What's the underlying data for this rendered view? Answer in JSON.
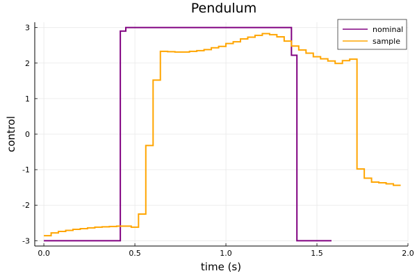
{
  "chart_data": {
    "type": "line",
    "style": "steps",
    "title": "Pendulum",
    "xlabel": "time (s)",
    "ylabel": "control",
    "xlim": [
      -0.05,
      2.0
    ],
    "ylim": [
      -3.15,
      3.15
    ],
    "xticks": [
      0.0,
      0.5,
      1.0,
      1.5,
      2.0
    ],
    "xtick_labels": [
      "0.0",
      "0.5",
      "1.0",
      "1.5",
      "2.0"
    ],
    "yticks": [
      -3,
      -2,
      -1,
      0,
      1,
      2,
      3
    ],
    "ytick_labels": [
      "-3",
      "-2",
      "-1",
      "0",
      "1",
      "2",
      "3"
    ],
    "grid": true,
    "legend_position": "top-right",
    "series": [
      {
        "name": "nominal",
        "color": "#800080",
        "x": [
          0.0,
          0.42,
          0.45,
          1.36,
          1.39,
          1.58
        ],
        "y": [
          -3.0,
          2.9,
          3.0,
          2.22,
          -3.0,
          -3.0
        ]
      },
      {
        "name": "sample",
        "color": "#FFA500",
        "x": [
          0.0,
          0.04,
          0.08,
          0.12,
          0.16,
          0.2,
          0.24,
          0.28,
          0.32,
          0.36,
          0.4,
          0.44,
          0.48,
          0.52,
          0.56,
          0.6,
          0.64,
          0.68,
          0.72,
          0.76,
          0.8,
          0.84,
          0.88,
          0.92,
          0.96,
          1.0,
          1.04,
          1.08,
          1.12,
          1.16,
          1.2,
          1.24,
          1.28,
          1.32,
          1.36,
          1.4,
          1.44,
          1.48,
          1.52,
          1.56,
          1.6,
          1.64,
          1.68,
          1.72,
          1.76,
          1.8,
          1.84,
          1.88,
          1.92,
          1.96
        ],
        "y": [
          -2.86,
          -2.78,
          -2.74,
          -2.71,
          -2.68,
          -2.66,
          -2.64,
          -2.62,
          -2.61,
          -2.6,
          -2.59,
          -2.59,
          -2.62,
          -2.25,
          -0.32,
          1.52,
          2.33,
          2.32,
          2.31,
          2.31,
          2.33,
          2.35,
          2.38,
          2.43,
          2.47,
          2.55,
          2.6,
          2.68,
          2.73,
          2.78,
          2.83,
          2.8,
          2.74,
          2.62,
          2.48,
          2.37,
          2.28,
          2.18,
          2.12,
          2.06,
          1.99,
          2.07,
          2.11,
          -0.98,
          -1.24,
          -1.35,
          -1.37,
          -1.4,
          -1.44,
          -1.44
        ]
      }
    ]
  }
}
